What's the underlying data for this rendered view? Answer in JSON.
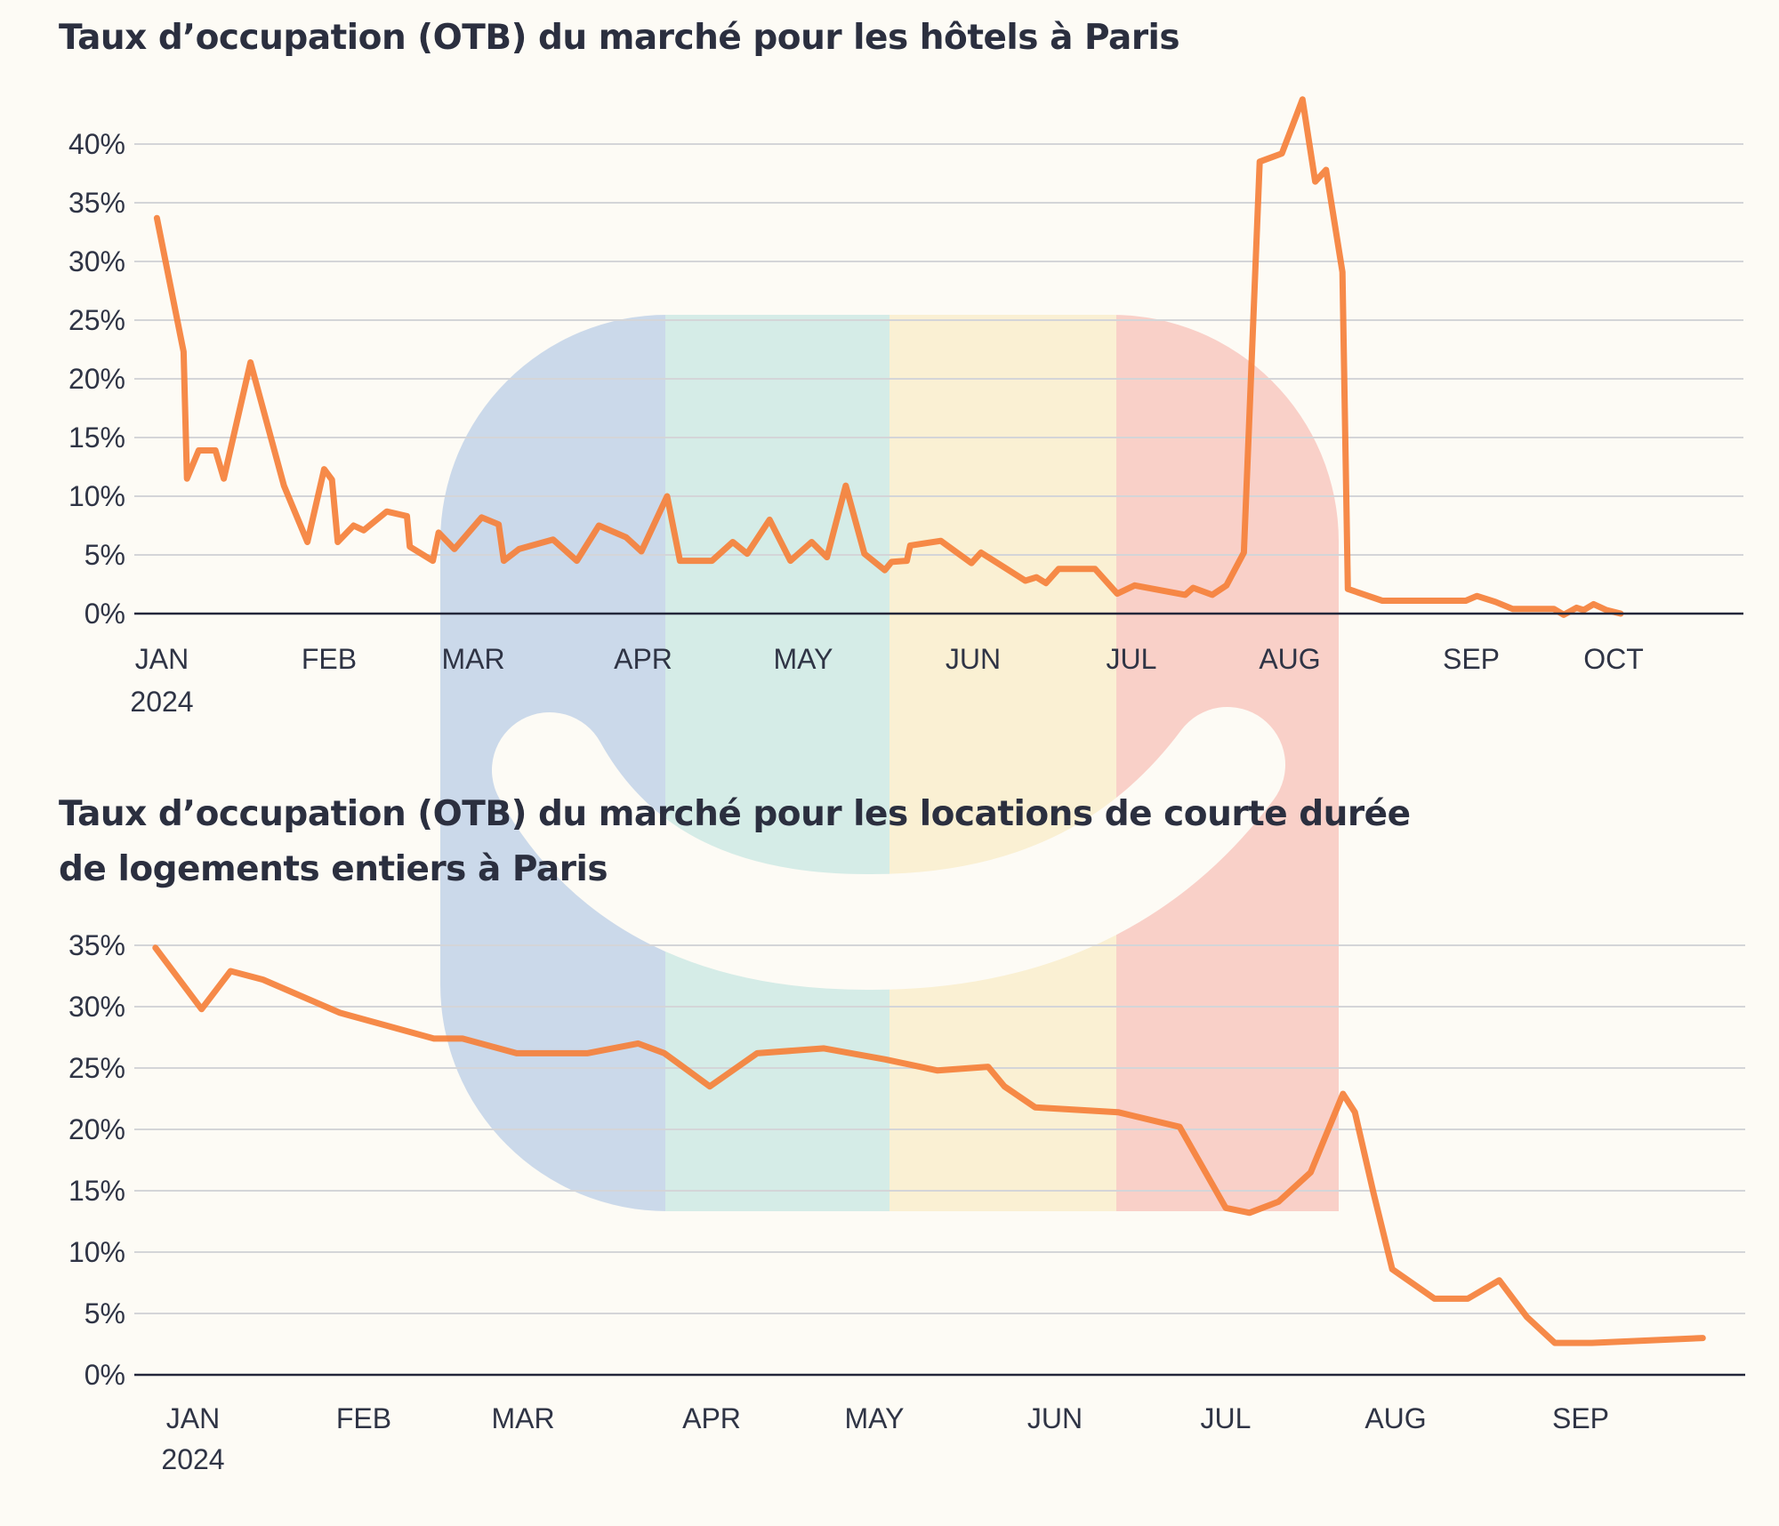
{
  "colors": {
    "line": "#f5803a",
    "axis": "#23263a",
    "grid": "#d4d5d8",
    "background": "#fdfbf5",
    "watermark_bands": [
      "#cbd9ea",
      "#d5ece7",
      "#faf0d3",
      "#f9d0c8"
    ],
    "watermark_smile": "#fdfbf5"
  },
  "chart_data": [
    {
      "type": "line",
      "title": "Taux d’occupation (OTB) du marché pour les hôtels à Paris",
      "xlabel": "",
      "ylabel": "",
      "x_unit": "month index (0 = JAN 2024)",
      "x_ticks": [
        "JAN",
        "FEB",
        "MAR",
        "APR",
        "MAY",
        "JUN",
        "JUL",
        "AUG",
        "SEP",
        "OCT"
      ],
      "x_year_label": "2024",
      "y_ticks": [
        "0%",
        "5%",
        "10%",
        "15%",
        "20%",
        "25%",
        "30%",
        "35%",
        "40%"
      ],
      "ylim": [
        0,
        40
      ],
      "grid": true,
      "points": [
        [
          -0.03,
          33.7
        ],
        [
          0.13,
          22.3
        ],
        [
          0.15,
          11.5
        ],
        [
          0.22,
          13.9
        ],
        [
          0.32,
          13.9
        ],
        [
          0.37,
          11.5
        ],
        [
          0.53,
          21.4
        ],
        [
          0.73,
          10.9
        ],
        [
          0.87,
          6.1
        ],
        [
          0.97,
          12.3
        ],
        [
          1.02,
          11.4
        ],
        [
          1.06,
          6.1
        ],
        [
          1.17,
          7.5
        ],
        [
          1.24,
          7.1
        ],
        [
          1.4,
          8.7
        ],
        [
          1.54,
          8.3
        ],
        [
          1.56,
          5.7
        ],
        [
          1.72,
          4.5
        ],
        [
          1.76,
          6.9
        ],
        [
          1.87,
          5.5
        ],
        [
          2.05,
          8.2
        ],
        [
          2.15,
          7.6
        ],
        [
          2.18,
          4.5
        ],
        [
          2.27,
          5.5
        ],
        [
          2.47,
          6.3
        ],
        [
          2.61,
          4.5
        ],
        [
          2.74,
          7.5
        ],
        [
          2.9,
          6.5
        ],
        [
          2.99,
          5.3
        ],
        [
          3.15,
          10.0
        ],
        [
          3.23,
          4.5
        ],
        [
          3.43,
          4.5
        ],
        [
          3.56,
          6.1
        ],
        [
          3.65,
          5.1
        ],
        [
          3.79,
          8.0
        ],
        [
          3.92,
          4.5
        ],
        [
          4.05,
          6.1
        ],
        [
          4.14,
          4.8
        ],
        [
          4.25,
          10.9
        ],
        [
          4.36,
          5.1
        ],
        [
          4.48,
          3.7
        ],
        [
          4.52,
          4.4
        ],
        [
          4.61,
          4.5
        ],
        [
          4.63,
          5.8
        ],
        [
          4.81,
          6.2
        ],
        [
          4.99,
          4.3
        ],
        [
          5.05,
          5.2
        ],
        [
          5.33,
          2.8
        ],
        [
          5.4,
          3.1
        ],
        [
          5.46,
          2.6
        ],
        [
          5.54,
          3.8
        ],
        [
          5.77,
          3.8
        ],
        [
          5.91,
          1.7
        ],
        [
          6.02,
          2.4
        ],
        [
          6.34,
          1.6
        ],
        [
          6.39,
          2.2
        ],
        [
          6.51,
          1.6
        ],
        [
          6.6,
          2.4
        ],
        [
          6.71,
          5.2
        ],
        [
          6.81,
          38.5
        ],
        [
          6.95,
          39.2
        ],
        [
          7.07,
          43.8
        ],
        [
          7.14,
          36.8
        ],
        [
          7.2,
          37.8
        ],
        [
          7.29,
          29.1
        ],
        [
          7.32,
          2.1
        ],
        [
          7.51,
          1.1
        ],
        [
          7.97,
          1.1
        ],
        [
          8.04,
          1.5
        ],
        [
          8.17,
          1.0
        ],
        [
          8.29,
          0.4
        ],
        [
          8.58,
          0.4
        ],
        [
          8.65,
          -0.1
        ],
        [
          8.74,
          0.5
        ],
        [
          8.79,
          0.3
        ],
        [
          8.86,
          0.8
        ],
        [
          8.95,
          0.3
        ],
        [
          9.05,
          0.0
        ]
      ]
    },
    {
      "type": "line",
      "title": "Taux d’occupation (OTB) du marché pour les locations de courte durée de logements entiers à Paris",
      "title_lines": [
        "Taux d’occupation (OTB) du marché pour les locations de courte durée",
        "de logements entiers à Paris"
      ],
      "xlabel": "",
      "ylabel": "",
      "x_unit": "month index (0 = JAN 2024)",
      "x_ticks": [
        "JAN",
        "FEB",
        "MAR",
        "APR",
        "MAY",
        "JUN",
        "JUL",
        "AUG",
        "SEP"
      ],
      "x_year_label": "2024",
      "y_ticks": [
        "0%",
        "5%",
        "10%",
        "15%",
        "20%",
        "25%",
        "30%",
        "35%"
      ],
      "ylim": [
        0,
        35
      ],
      "grid": true,
      "points": [
        [
          -0.22,
          34.8
        ],
        [
          0.05,
          29.8
        ],
        [
          0.22,
          32.9
        ],
        [
          0.41,
          32.2
        ],
        [
          0.86,
          29.5
        ],
        [
          1.44,
          27.4
        ],
        [
          1.62,
          27.4
        ],
        [
          1.96,
          26.2
        ],
        [
          2.34,
          26.2
        ],
        [
          2.61,
          27.0
        ],
        [
          2.75,
          26.2
        ],
        [
          2.99,
          23.5
        ],
        [
          3.28,
          26.2
        ],
        [
          3.69,
          26.6
        ],
        [
          4.06,
          25.7
        ],
        [
          4.35,
          24.8
        ],
        [
          4.63,
          25.1
        ],
        [
          4.72,
          23.5
        ],
        [
          4.89,
          21.8
        ],
        [
          5.37,
          21.4
        ],
        [
          5.73,
          20.2
        ],
        [
          6.0,
          13.6
        ],
        [
          6.14,
          13.2
        ],
        [
          6.31,
          14.1
        ],
        [
          6.5,
          16.5
        ],
        [
          6.69,
          22.9
        ],
        [
          6.76,
          21.4
        ],
        [
          6.87,
          14.8
        ],
        [
          6.98,
          8.6
        ],
        [
          7.21,
          6.2
        ],
        [
          7.39,
          6.2
        ],
        [
          7.56,
          7.7
        ],
        [
          7.71,
          4.7
        ],
        [
          7.86,
          2.6
        ],
        [
          8.06,
          2.6
        ],
        [
          8.66,
          3.0
        ]
      ]
    }
  ]
}
